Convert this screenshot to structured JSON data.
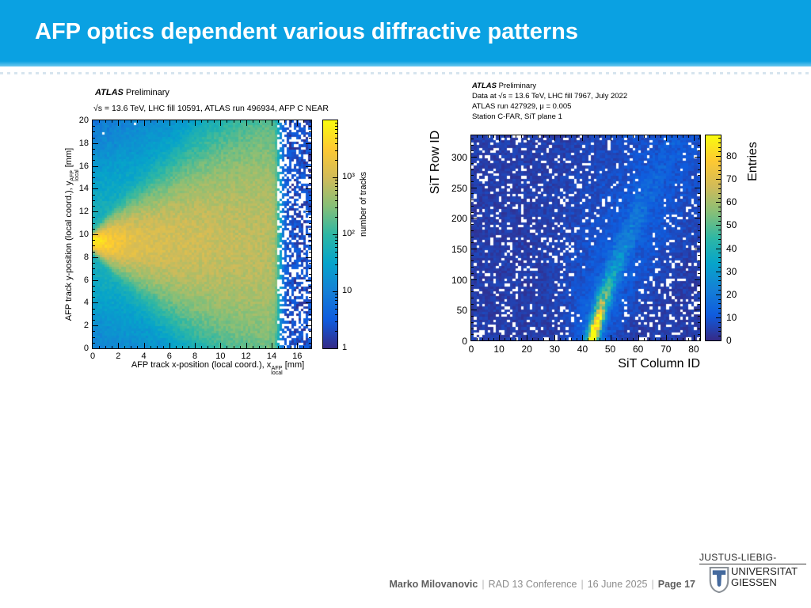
{
  "slide": {
    "title": "AFP optics dependent various diffractive patterns",
    "footer": {
      "author": "Marko Milovanovic",
      "separator": "|",
      "conference": "RAD 13 Conference",
      "date": "16 June 2025",
      "page": "Page 17"
    },
    "logo": {
      "top": "JUSTUS-LIEBIG-",
      "name1": "UNIVERSITAT",
      "name2": "GIESSEN"
    },
    "colors": {
      "header_blue": "#0aa1e2",
      "logo_blue": "#44699d",
      "footer_gray": "#8c8c8c"
    }
  },
  "palette": [
    "#352a87",
    "#0f5cde",
    "#1480d6",
    "#06a4ca",
    "#2eb7a4",
    "#87bf77",
    "#d1bb59",
    "#fec932",
    "#f9fb0e"
  ],
  "chart_data": [
    {
      "id": "afp_track_xy",
      "type": "heatmap",
      "title_experiment": "ATLAS",
      "title_label": "Preliminary",
      "subtitle": "√s = 13.6 TeV, LHC fill 10591, ATLAS run 496934, AFP C NEAR",
      "xlabel": {
        "prefix": "AFP track x-position (local coord.), x",
        "sup": "AFP",
        "sub": "local",
        "suffix": " [mm]"
      },
      "ylabel": {
        "prefix": "AFP track y-position (local coord.), y",
        "sup": "AFP",
        "sub": "local",
        "suffix": " [mm]"
      },
      "zlabel": "number of tracks",
      "xlim": [
        0,
        17.1
      ],
      "ylim": [
        0,
        20
      ],
      "xticks": [
        0,
        2,
        4,
        6,
        8,
        10,
        12,
        14,
        16
      ],
      "yticks": [
        0,
        2,
        4,
        6,
        8,
        10,
        12,
        14,
        16,
        18,
        20
      ],
      "x_minor_step": 0.5,
      "y_minor_step": 0.5,
      "zscale": "log",
      "zmax_exp": 4,
      "ztick_exp": [
        0,
        1,
        2,
        3
      ],
      "ztick_labels": [
        "1",
        "10",
        "10²",
        "10³"
      ],
      "grid": false,
      "legend": "colorbar-right",
      "model": {
        "comment": "bright narrow beam spot at y=9.3 mm near x=0 (~3000-7000 tracks) fanning out and fading toward x=14; sharp acceptance cutoff at x=14.35 mm; blue background 3-9 tracks with sparse empty bins; sparse region beyond cutoff",
        "seed": 10591,
        "nx": 90,
        "ny": 93,
        "beam_y": 9.3,
        "amp1": 6500,
        "len1": 1.1,
        "amp2": 1400,
        "len2": 18,
        "sigma0": 0.3,
        "sigma_slope": 0.42,
        "halo_amp": 55,
        "halo_sigma0": 4.0,
        "halo_slope": 0.35,
        "cutoff_x": 14.35,
        "cutoff_w": 0.12,
        "bg_min": 3,
        "bg_max": 9,
        "empty_frac_sparse": 0.38,
        "empty_frac_main": 0.03
      }
    },
    {
      "id": "sit_plane_map",
      "type": "heatmap",
      "title_experiment": "ATLAS",
      "title_label": "Preliminary",
      "subtitle_lines": [
        "Data at √s = 13.6 TeV, LHC fill 7967, July 2022",
        "ATLAS run 427929, μ = 0.005",
        "Station C-FAR, SiT plane 1"
      ],
      "xlabel": "SiT Column ID",
      "ylabel": "SiT Row ID",
      "zlabel": "Entries",
      "xlim": [
        0,
        82.3
      ],
      "ylim": [
        0,
        335
      ],
      "xticks": [
        0,
        10,
        20,
        30,
        40,
        50,
        60,
        70,
        80
      ],
      "yticks": [
        0,
        50,
        100,
        150,
        200,
        250,
        300
      ],
      "x_minor_step": 2,
      "y_minor_step": 10,
      "zscale": "linear",
      "zlim": [
        0,
        89
      ],
      "zticks": [
        0,
        10,
        20,
        30,
        40,
        50,
        60,
        70,
        80
      ],
      "z_minor_step": 2,
      "grid": false,
      "legend": "colorbar-right",
      "model": {
        "comment": "diagonal bright track band starting at column ~44 row 0 (~85 entries, yellow) curving up-right and fading into a diffuse blue cloud near column ~70 row ~300; royal-blue background 1-7 entries with ~14% empty (white) pixels",
        "seed": 7967,
        "nx": 82,
        "ny": 80,
        "streak_c0": 43.5,
        "streak_slope": 0.055,
        "streak_quad": 0.00012,
        "amp1": 95,
        "len1": 55,
        "amp2": 20,
        "len2": 150,
        "width0": 1.3,
        "width_slope": 0.009,
        "cloud_amp": 10,
        "cloud_len": 400,
        "cloud_width0": 5,
        "cloud_width_slope": 0.05,
        "bg_min": 1.5,
        "bg_max": 7,
        "empty_frac": 0.14
      }
    }
  ]
}
